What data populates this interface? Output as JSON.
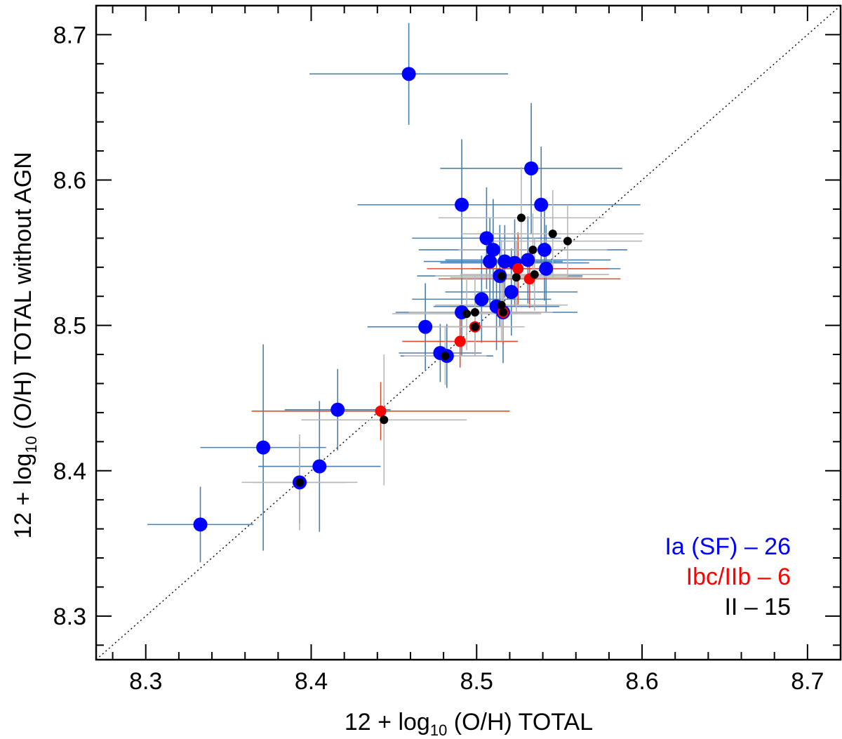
{
  "chart_data": {
    "type": "scatter",
    "title": "",
    "xlabel": {
      "pre": "12 + log",
      "sub": "10",
      "post": " (O/H) TOTAL"
    },
    "ylabel": {
      "pre": "12 + log",
      "sub": "10",
      "post": " (O/H) TOTAL without AGN"
    },
    "xlim": [
      8.27,
      8.72
    ],
    "ylim": [
      8.27,
      8.72
    ],
    "xticks": [
      8.3,
      8.4,
      8.5,
      8.6,
      8.7
    ],
    "yticks": [
      8.3,
      8.4,
      8.5,
      8.6,
      8.7
    ],
    "xtick_labels": [
      "8.3",
      "8.4",
      "8.5",
      "8.6",
      "8.7"
    ],
    "ytick_labels": [
      "8.3",
      "8.4",
      "8.5",
      "8.6",
      "8.7"
    ],
    "one_to_one_line": true,
    "grid": false,
    "legend_position": "bottom-right",
    "series": [
      {
        "name": "Ia (SF) – 26",
        "color": "#0000ff",
        "errcolor": "#4a7fae",
        "marker_size": "large",
        "points": [
          {
            "x": 8.333,
            "y": 8.363,
            "xerr": 0.032,
            "yerr": 0.026
          },
          {
            "x": 8.371,
            "y": 8.416,
            "xerr": 0.038,
            "yerr": 0.071
          },
          {
            "x": 8.393,
            "y": 8.392,
            "xerr": 0.028,
            "yerr": 0.028
          },
          {
            "x": 8.405,
            "y": 8.403,
            "xerr": 0.037,
            "yerr": 0.045
          },
          {
            "x": 8.416,
            "y": 8.442,
            "xerr": 0.032,
            "yerr": 0.028
          },
          {
            "x": 8.459,
            "y": 8.673,
            "xerr": 0.06,
            "yerr": 0.035
          },
          {
            "x": 8.469,
            "y": 8.499,
            "xerr": 0.035,
            "yerr": 0.03
          },
          {
            "x": 8.478,
            "y": 8.481,
            "xerr": 0.025,
            "yerr": 0.02
          },
          {
            "x": 8.482,
            "y": 8.479,
            "xerr": 0.028,
            "yerr": 0.022
          },
          {
            "x": 8.491,
            "y": 8.509,
            "xerr": 0.04,
            "yerr": 0.03
          },
          {
            "x": 8.491,
            "y": 8.583,
            "xerr": 0.063,
            "yerr": 0.045
          },
          {
            "x": 8.503,
            "y": 8.518,
            "xerr": 0.042,
            "yerr": 0.03
          },
          {
            "x": 8.506,
            "y": 8.56,
            "xerr": 0.045,
            "yerr": 0.035
          },
          {
            "x": 8.508,
            "y": 8.544,
            "xerr": 0.04,
            "yerr": 0.03
          },
          {
            "x": 8.51,
            "y": 8.552,
            "xerr": 0.045,
            "yerr": 0.035
          },
          {
            "x": 8.512,
            "y": 8.513,
            "xerr": 0.038,
            "yerr": 0.03
          },
          {
            "x": 8.514,
            "y": 8.534,
            "xerr": 0.05,
            "yerr": 0.035
          },
          {
            "x": 8.516,
            "y": 8.509,
            "xerr": 0.045,
            "yerr": 0.035
          },
          {
            "x": 8.521,
            "y": 8.523,
            "xerr": 0.04,
            "yerr": 0.03
          },
          {
            "x": 8.523,
            "y": 8.543,
            "xerr": 0.045,
            "yerr": 0.03
          },
          {
            "x": 8.531,
            "y": 8.545,
            "xerr": 0.05,
            "yerr": 0.03
          },
          {
            "x": 8.533,
            "y": 8.608,
            "xerr": 0.055,
            "yerr": 0.045
          },
          {
            "x": 8.539,
            "y": 8.583,
            "xerr": 0.06,
            "yerr": 0.04
          },
          {
            "x": 8.541,
            "y": 8.552,
            "xerr": 0.05,
            "yerr": 0.035
          },
          {
            "x": 8.542,
            "y": 8.539,
            "xerr": 0.045,
            "yerr": 0.03
          },
          {
            "x": 8.517,
            "y": 8.544,
            "xerr": 0.035,
            "yerr": 0.025
          }
        ]
      },
      {
        "name": "Ibc/IIb – 6",
        "color": "#ff0000",
        "errcolor": "#e8492e",
        "marker_size": "medium",
        "points": [
          {
            "x": 8.442,
            "y": 8.441,
            "xerr": 0.078,
            "yerr": 0.02
          },
          {
            "x": 8.49,
            "y": 8.489,
            "xerr": 0.035,
            "yerr": 0.018
          },
          {
            "x": 8.499,
            "y": 8.499,
            "xerr": 0.02,
            "yerr": 0.02
          },
          {
            "x": 8.516,
            "y": 8.509,
            "xerr": 0.022,
            "yerr": 0.022
          },
          {
            "x": 8.525,
            "y": 8.539,
            "xerr": 0.055,
            "yerr": 0.025
          },
          {
            "x": 8.532,
            "y": 8.532,
            "xerr": 0.055,
            "yerr": 0.02
          }
        ]
      },
      {
        "name": "II – 15",
        "color": "#000000",
        "errcolor": "#b7b7b7",
        "marker_size": "small",
        "points": [
          {
            "x": 8.393,
            "y": 8.392,
            "xerr": 0.035,
            "yerr": 0.033
          },
          {
            "x": 8.444,
            "y": 8.435,
            "xerr": 0.05,
            "yerr": 0.045
          },
          {
            "x": 8.481,
            "y": 8.479,
            "xerr": 0.025,
            "yerr": 0.02
          },
          {
            "x": 8.494,
            "y": 8.508,
            "xerr": 0.045,
            "yerr": 0.025
          },
          {
            "x": 8.499,
            "y": 8.509,
            "xerr": 0.04,
            "yerr": 0.025
          },
          {
            "x": 8.499,
            "y": 8.499,
            "xerr": 0.03,
            "yerr": 0.02
          },
          {
            "x": 8.515,
            "y": 8.514,
            "xerr": 0.04,
            "yerr": 0.025
          },
          {
            "x": 8.515,
            "y": 8.534,
            "xerr": 0.04,
            "yerr": 0.025
          },
          {
            "x": 8.524,
            "y": 8.533,
            "xerr": 0.04,
            "yerr": 0.025
          },
          {
            "x": 8.527,
            "y": 8.574,
            "xerr": 0.05,
            "yerr": 0.035
          },
          {
            "x": 8.534,
            "y": 8.552,
            "xerr": 0.045,
            "yerr": 0.025
          },
          {
            "x": 8.535,
            "y": 8.535,
            "xerr": 0.045,
            "yerr": 0.025
          },
          {
            "x": 8.546,
            "y": 8.563,
            "xerr": 0.055,
            "yerr": 0.03
          },
          {
            "x": 8.555,
            "y": 8.558,
            "xerr": 0.045,
            "yerr": 0.025
          },
          {
            "x": 8.516,
            "y": 8.509,
            "xerr": 0.03,
            "yerr": 0.02
          }
        ]
      }
    ]
  }
}
